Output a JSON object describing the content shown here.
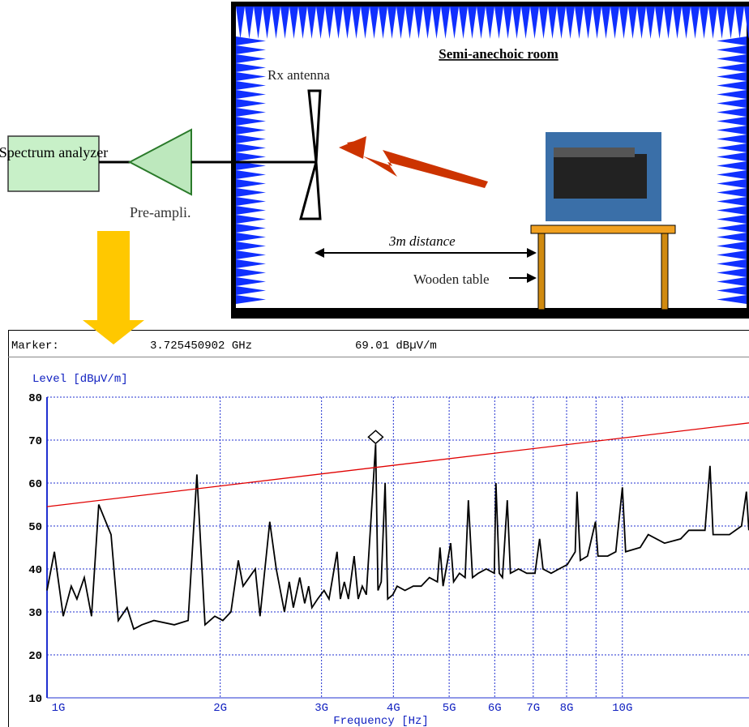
{
  "diagram": {
    "room_title": "Semi-anechoic room",
    "rx_antenna": "Rx antenna",
    "spectrum_analyzer": "Spectrum analyzer",
    "pre_amplifier": "Pre-ampli.",
    "distance": "3m distance",
    "table": "Wooden table"
  },
  "chart_data": {
    "type": "line",
    "marker_label": "Marker:",
    "marker": {
      "x": 3725450902,
      "y": 69.01,
      "x_label": "3.725450902 GHz",
      "y_label": "69.01 dBµV/m"
    },
    "y_label": "Level [dBµV/m]",
    "x_label": "Frequency [Hz]",
    "xlog": true,
    "grid": true,
    "xlim": [
      1000000000,
      16600000000
    ],
    "ylim": [
      10,
      80
    ],
    "xticks": [
      {
        "value": 1000000000,
        "label": "1G"
      },
      {
        "value": 2000000000,
        "label": "2G"
      },
      {
        "value": 3000000000,
        "label": "3G"
      },
      {
        "value": 4000000000,
        "label": "4G"
      },
      {
        "value": 5000000000,
        "label": "5G"
      },
      {
        "value": 6000000000,
        "label": "6G"
      },
      {
        "value": 7000000000,
        "label": "7G"
      },
      {
        "value": 8000000000,
        "label": "8G"
      },
      {
        "value": 9000000000,
        "label": null
      },
      {
        "value": 10000000000,
        "label": "10G"
      }
    ],
    "yticks": [
      10,
      20,
      30,
      40,
      50,
      60,
      70,
      80
    ],
    "series": [
      {
        "color": "#000000",
        "x": [
          1000000000,
          1030000000,
          1067000000,
          1102000000,
          1127000000,
          1161000000,
          1195000000,
          1230000000,
          1292000000,
          1330000000,
          1378000000,
          1415000000,
          1461000000,
          1534000000,
          1664000000,
          1759000000,
          1822000000,
          1882000000,
          1957000000,
          2021000000,
          2088000000,
          2150000000,
          2192000000,
          2301000000,
          2346000000,
          2439000000,
          2503000000,
          2586000000,
          2637000000,
          2680000000,
          2750000000,
          2805000000,
          2850000000,
          2887000000,
          2953000000,
          3031000000,
          3091000000,
          3192000000,
          3235000000,
          3287000000,
          3341000000,
          3418000000,
          3474000000,
          3531000000,
          3589000000,
          3725450902,
          3760000000,
          3810000000,
          3870000000,
          3910000000,
          3990000000,
          4060000000,
          4190000000,
          4330000000,
          4470000000,
          4620000000,
          4770000000,
          4820000000,
          4880000000,
          5030000000,
          5090000000,
          5210000000,
          5330000000,
          5400000000,
          5490000000,
          5620000000,
          5800000000,
          5990000000,
          6030000000,
          6110000000,
          6190000000,
          6310000000,
          6390000000,
          6600000000,
          6820000000,
          7050000000,
          7180000000,
          7280000000,
          7520000000,
          7760000000,
          8020000000,
          8280000000,
          8340000000,
          8450000000,
          8700000000,
          8980000000,
          9070000000,
          9430000000,
          9740000000,
          10000000000,
          10130000000,
          10740000000,
          11090000000,
          11840000000,
          12630000000,
          13050000000,
          13920000000,
          14200000000,
          14380000000,
          15350000000,
          16110000000,
          16430000000,
          16590000000
        ],
        "values": [
          35,
          44,
          29,
          36,
          33,
          38,
          29,
          55,
          48,
          28,
          31,
          26,
          27,
          28,
          27,
          28,
          62,
          27,
          29,
          28,
          30,
          42,
          36,
          40,
          29,
          51,
          40,
          30,
          37,
          31,
          38,
          32,
          36,
          31,
          33,
          35,
          33,
          44,
          33,
          37,
          33,
          43,
          33,
          36,
          34,
          69.01,
          35,
          37,
          60,
          33,
          34,
          36,
          35,
          36,
          36,
          38,
          37,
          45,
          36,
          46,
          37,
          39,
          38,
          56,
          38,
          39,
          40,
          39,
          60,
          39,
          38,
          56,
          39,
          40,
          39,
          39,
          47,
          40,
          39,
          40,
          41,
          44,
          58,
          42,
          43,
          51,
          43,
          43,
          44,
          59,
          44,
          45,
          48,
          46,
          47,
          49,
          49,
          64,
          48,
          48,
          50,
          58,
          49
        ]
      },
      {
        "color": "#e00000",
        "x": [
          1000000000,
          16600000000
        ],
        "values": [
          54.5,
          74
        ]
      }
    ]
  }
}
